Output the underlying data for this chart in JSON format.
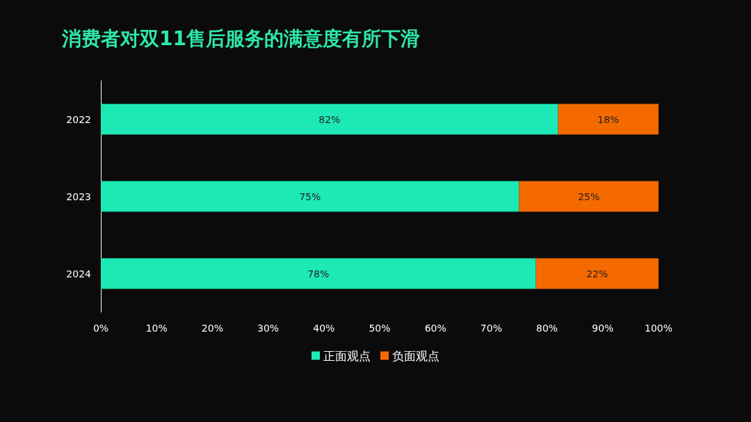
{
  "chart_data": {
    "type": "bar",
    "orientation": "horizontal",
    "stacked": true,
    "title": "消费者对双11售后服务的满意度有所下滑",
    "categories": [
      "2022",
      "2023",
      "2024"
    ],
    "series": [
      {
        "name": "正面观点",
        "color": "#1de9b6",
        "values": [
          82,
          75,
          78
        ],
        "value_labels": [
          "82%",
          "75%",
          "78%"
        ]
      },
      {
        "name": "负面观点",
        "color": "#f56a00",
        "values": [
          18,
          25,
          22
        ],
        "value_labels": [
          "18%",
          "25%",
          "22%"
        ]
      }
    ],
    "xlim": [
      0,
      100
    ],
    "xticks": [
      {
        "value": 0,
        "label": "0%"
      },
      {
        "value": 10,
        "label": "10%"
      },
      {
        "value": 20,
        "label": "20%"
      },
      {
        "value": 30,
        "label": "30%"
      },
      {
        "value": 40,
        "label": "40%"
      },
      {
        "value": 50,
        "label": "50%"
      },
      {
        "value": 60,
        "label": "60%"
      },
      {
        "value": 70,
        "label": "70%"
      },
      {
        "value": 80,
        "label": "80%"
      },
      {
        "value": 90,
        "label": "90%"
      },
      {
        "value": 100,
        "label": "100%"
      }
    ],
    "grid": false,
    "legend": "bottom"
  }
}
